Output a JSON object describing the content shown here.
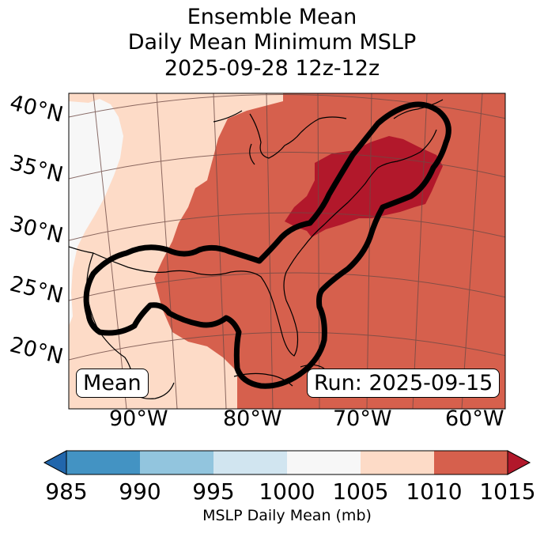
{
  "title": {
    "line1": "Ensemble Mean",
    "line2": "Daily Mean Minimum MSLP",
    "line3": "2025-09-28 12z-12z"
  },
  "map": {
    "lat_labels": [
      "40°N",
      "35°N",
      "30°N",
      "25°N",
      "20°N"
    ],
    "lon_labels": [
      "90°W",
      "80°W",
      "70°W",
      "60°W"
    ],
    "left_box": "Mean",
    "right_box": "Run: 2025-09-15",
    "field_colors": {
      "lt1000": "#f7f7f7",
      "1005_1010": "#fddbc7",
      "1010_1015": "#d6604d",
      "gt1015": "#b2182b"
    },
    "contour_color": "#000000"
  },
  "colorbar": {
    "ticks": [
      "985",
      "990",
      "995",
      "1000",
      "1005",
      "1010",
      "1015"
    ],
    "colors": [
      "#4393c3",
      "#92c5de",
      "#d1e5f0",
      "#f7f7f7",
      "#fddbc7",
      "#d6604d"
    ],
    "under_color": "#2166ac",
    "over_color": "#b2182b",
    "label": "MSLP Daily Mean (mb)"
  }
}
